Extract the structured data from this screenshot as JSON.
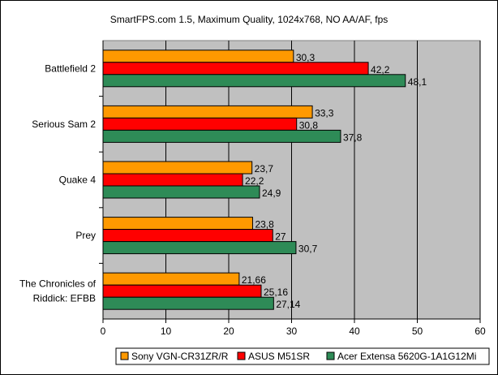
{
  "chart_data": {
    "type": "bar",
    "orientation": "horizontal",
    "title": "SmartFPS.com 1.5, Maximum Quality, 1024x768, NO AA/AF, fps",
    "categories": [
      [
        "Battlefield 2"
      ],
      [
        "Serious Sam 2"
      ],
      [
        "Quake 4"
      ],
      [
        "Prey"
      ],
      [
        "The Chronicles of",
        "Riddick: EFBB"
      ]
    ],
    "series": [
      {
        "name": "Sony VGN-CR31ZR/R",
        "color": "#ff9900",
        "values": [
          30.3,
          33.3,
          23.7,
          23.8,
          21.66
        ],
        "labels": [
          "30,3",
          "33,3",
          "23,7",
          "23,8",
          "21,66"
        ]
      },
      {
        "name": "ASUS M51SR",
        "color": "#ff0000",
        "values": [
          42.2,
          30.8,
          22.2,
          27,
          25.16
        ],
        "labels": [
          "42,2",
          "30,8",
          "22,2",
          "27",
          "25,16"
        ]
      },
      {
        "name": "Acer Extensa 5620G-1A1G12Mi",
        "color": "#2e8b57",
        "values": [
          48.1,
          37.8,
          24.9,
          30.7,
          27.14
        ],
        "labels": [
          "48,1",
          "37,8",
          "24,9",
          "30,7",
          "27,14"
        ]
      }
    ],
    "xlim": [
      0,
      60
    ],
    "xticks": [
      "0",
      "10",
      "20",
      "30",
      "40",
      "50",
      "60"
    ],
    "grid": true,
    "legend_position": "bottom-right",
    "plot_background": "#c0c0c0"
  }
}
